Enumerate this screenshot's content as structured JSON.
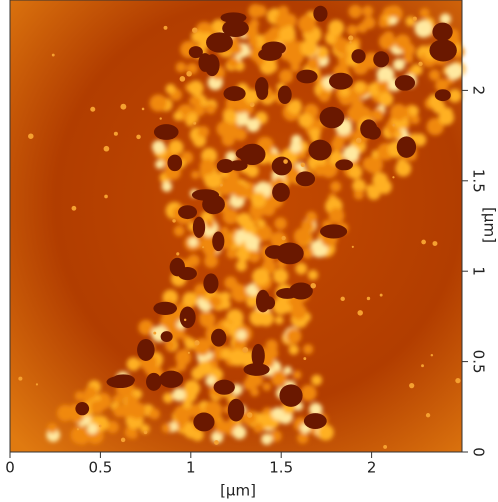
{
  "chart_data": {
    "type": "image",
    "x_label": "[μm]",
    "y_label": "[μm]",
    "xlim": [
      0,
      2.5
    ],
    "ylim": [
      0,
      2.5
    ],
    "xticks": [
      0,
      0.5,
      1,
      1.5,
      2
    ],
    "yticks": [
      0,
      0.5,
      1,
      1.5,
      2
    ]
  }
}
